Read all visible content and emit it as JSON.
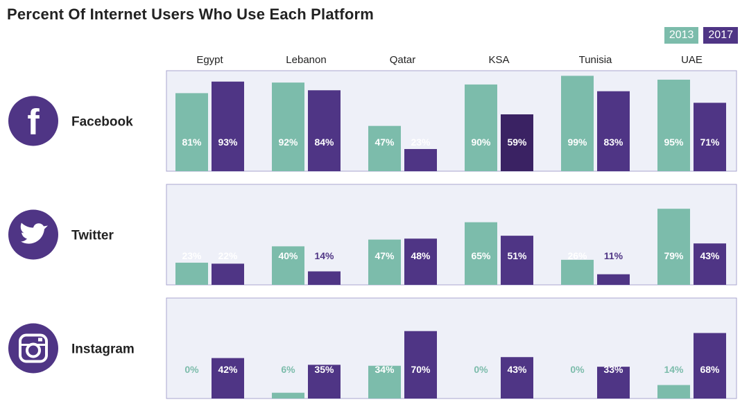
{
  "title": "Percent Of Internet Users Who Use Each Platform",
  "colors": {
    "2013": "#7cbcab",
    "2017": "#4f3585",
    "highlight": "#3a2263",
    "panel_bg": "#eef0f8",
    "panel_border": "#a9a6cf",
    "icon_bg": "#4f3585"
  },
  "legend": [
    {
      "label": "2013",
      "color": "#7cbcab"
    },
    {
      "label": "2017",
      "color": "#4f3585"
    }
  ],
  "chart_data": {
    "type": "bar",
    "title": "Percent Of Internet Users Who Use Each Platform",
    "categories": [
      "Egypt",
      "Lebanon",
      "Qatar",
      "KSA",
      "Tunisia",
      "UAE"
    ],
    "ylim": [
      0,
      100
    ],
    "legend_position": "top-right",
    "panels": [
      {
        "platform": "Facebook",
        "icon": "facebook-icon",
        "series": [
          {
            "name": "2013",
            "values": [
              81,
              92,
              47,
              90,
              99,
              95
            ]
          },
          {
            "name": "2017",
            "values": [
              93,
              84,
              23,
              59,
              83,
              71
            ]
          }
        ],
        "labels": [
          [
            "81%",
            "92%",
            "47%",
            "90%",
            "99%",
            "95%"
          ],
          [
            "93%",
            "84%",
            "23%",
            "59%",
            "83%",
            "71%"
          ]
        ]
      },
      {
        "platform": "Twitter",
        "icon": "twitter-icon",
        "series": [
          {
            "name": "2013",
            "values": [
              23,
              40,
              47,
              65,
              26,
              79
            ]
          },
          {
            "name": "2017",
            "values": [
              22,
              14,
              48,
              51,
              11,
              43
            ]
          }
        ],
        "labels": [
          [
            "23%",
            "40%",
            "47%",
            "65%",
            "26%",
            "79%"
          ],
          [
            "22%",
            "14%",
            "48%",
            "51%",
            "11%",
            "43%"
          ]
        ]
      },
      {
        "platform": "Instagram",
        "icon": "instagram-icon",
        "series": [
          {
            "name": "2013",
            "values": [
              0,
              6,
              34,
              0,
              0,
              14
            ]
          },
          {
            "name": "2017",
            "values": [
              42,
              35,
              70,
              43,
              33,
              68
            ]
          }
        ],
        "labels": [
          [
            "0%",
            "6%",
            "34%",
            "0%",
            "0%",
            "14%"
          ],
          [
            "42%",
            "35%",
            "70%",
            "43%",
            "33%",
            "68%"
          ]
        ]
      }
    ]
  }
}
